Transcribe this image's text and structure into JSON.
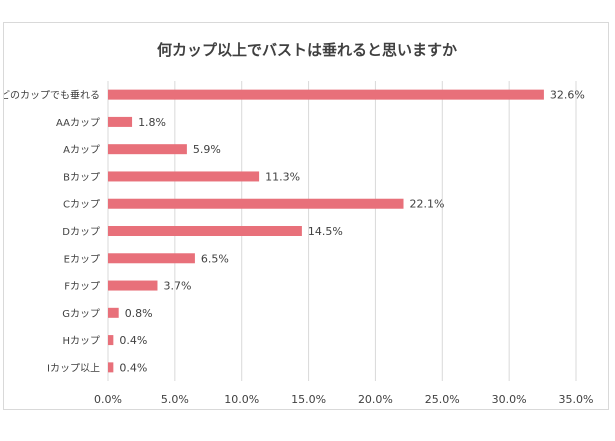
{
  "chart_data": {
    "type": "bar",
    "orientation": "horizontal",
    "title": "何カップ以上でバストは垂れると思いますか",
    "categories": [
      "どのカップでも垂れる",
      "AAカップ",
      "Aカップ",
      "Bカップ",
      "Cカップ",
      "Dカップ",
      "Eカップ",
      "Fカップ",
      "Gカップ",
      "Hカップ",
      "Iカップ以上"
    ],
    "values": [
      32.6,
      1.8,
      5.9,
      11.3,
      22.1,
      14.5,
      6.5,
      3.7,
      0.8,
      0.4,
      0.4
    ],
    "value_labels": [
      "32.6%",
      "1.8%",
      "5.9%",
      "11.3%",
      "22.1%",
      "14.5%",
      "6.5%",
      "3.7%",
      "0.8%",
      "0.4%",
      "0.4%"
    ],
    "xlim": [
      0,
      35
    ],
    "x_ticks": [
      0,
      5,
      10,
      15,
      20,
      25,
      30,
      35
    ],
    "x_tick_labels": [
      "0.0%",
      "5.0%",
      "10.0%",
      "15.0%",
      "20.0%",
      "25.0%",
      "30.0%",
      "35.0%"
    ],
    "xlabel": "",
    "ylabel": "",
    "grid": "vertical",
    "legend": "none",
    "bar_color": "#e8707a"
  }
}
